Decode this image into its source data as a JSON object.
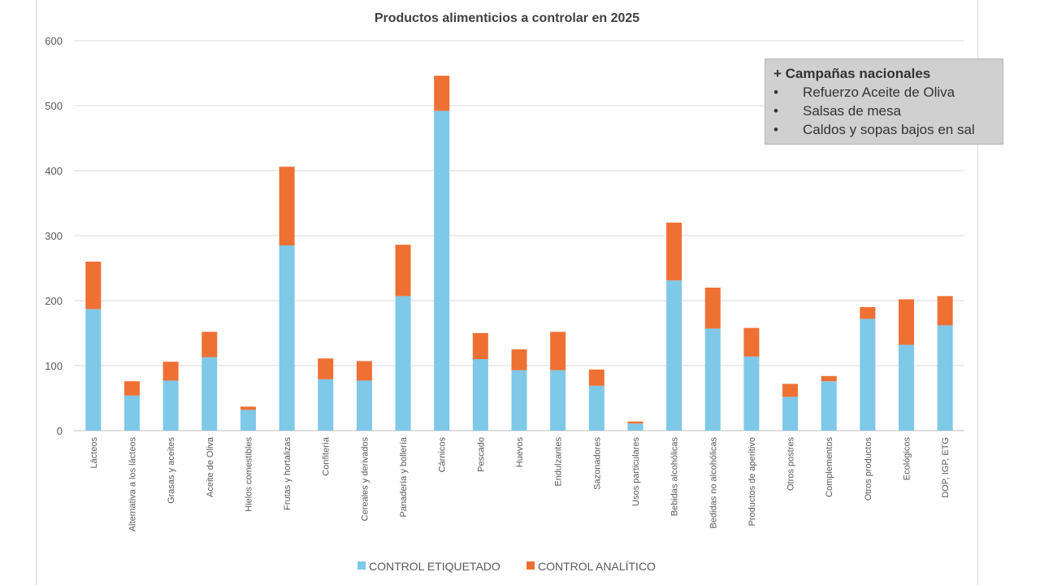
{
  "chart_data": {
    "type": "bar",
    "stacked": true,
    "title": "Productos alimenticios a controlar en 2025",
    "categories": [
      "Lácteos",
      "Alternativa a los lácteos",
      "Grasas y aceites",
      "Aceite de Oliva",
      "Hielos comestibles",
      "Frutas y hortalizas",
      "Confitería",
      "Cereales y derivados",
      "Panadería y bollería",
      "Cárnicos",
      "Pescado",
      "Huevos",
      "Endulzantes",
      "Sazonadores",
      "Usos particulares",
      "Bebidas alcohólicas",
      "Bedidas no alcohólicas",
      "Productos de aperitivo",
      "Otros postres",
      "Complementos",
      "Otros productos",
      "Ecológicos",
      "DOP, IGP, ETG"
    ],
    "series": [
      {
        "name": "CONTROL ETIQUETADO",
        "color": "#7ec8e8",
        "values": [
          187,
          54,
          77,
          113,
          32,
          285,
          79,
          77,
          207,
          492,
          110,
          93,
          93,
          69,
          11,
          231,
          157,
          114,
          52,
          76,
          172,
          132,
          162
        ]
      },
      {
        "name": "CONTROL ANALÍTICO",
        "color": "#ee7033",
        "values": [
          73,
          22,
          29,
          39,
          5,
          121,
          32,
          30,
          79,
          54,
          40,
          32,
          59,
          25,
          3,
          89,
          63,
          44,
          20,
          8,
          18,
          70,
          45
        ]
      }
    ],
    "ylim": [
      0,
      600
    ],
    "yticks": [
      0,
      100,
      200,
      300,
      400,
      500,
      600
    ],
    "grid": true,
    "legend_position": "bottom"
  },
  "callout": {
    "title": "+ Campañas nacionales",
    "bullet": "•",
    "items": [
      "Refuerzo Aceite de Oliva",
      "Salsas de mesa",
      "Caldos y sopas bajos en sal"
    ]
  }
}
